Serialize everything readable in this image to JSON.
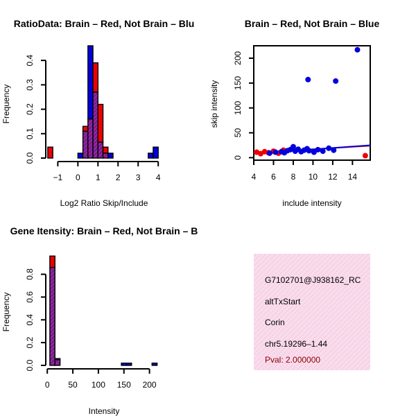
{
  "colors": {
    "red": "#ee0000",
    "blue": "#0000dd",
    "overlap": "#880088",
    "axis": "#000000",
    "pval": "#8b0000",
    "panel_bg": "#f7d6ea"
  },
  "chart_data": [
    {
      "type": "bar",
      "title": "RatioData: Brain – Red, Not Brain – Blu",
      "xlabel": "Log2 Ratio Skip/Include",
      "ylabel": "Frequency",
      "xlim": [
        -1.6,
        4.2
      ],
      "ylim": [
        0,
        0.46
      ],
      "xticks": [
        -1,
        0,
        1,
        2,
        3,
        4
      ],
      "yticks": [
        0.0,
        0.1,
        0.2,
        0.3,
        0.4
      ],
      "bin_width": 0.25,
      "series": [
        {
          "name": "Brain",
          "color": "red",
          "bars": [
            {
              "x": -1.5,
              "y": 0.045
            },
            {
              "x": 0.25,
              "y": 0.13
            },
            {
              "x": 0.5,
              "y": 0.16
            },
            {
              "x": 0.75,
              "y": 0.39
            },
            {
              "x": 1.0,
              "y": 0.22
            },
            {
              "x": 1.25,
              "y": 0.045
            }
          ]
        },
        {
          "name": "Not Brain",
          "color": "blue",
          "bars": [
            {
              "x": 0.0,
              "y": 0.02
            },
            {
              "x": 0.25,
              "y": 0.11
            },
            {
              "x": 0.5,
              "y": 0.46
            },
            {
              "x": 0.75,
              "y": 0.27
            },
            {
              "x": 1.0,
              "y": 0.065
            },
            {
              "x": 1.25,
              "y": 0.02
            },
            {
              "x": 1.5,
              "y": 0.02
            },
            {
              "x": 3.5,
              "y": 0.02
            },
            {
              "x": 3.75,
              "y": 0.045
            }
          ]
        }
      ]
    },
    {
      "type": "scatter",
      "title": "Brain – Red, Not Brain – Blue",
      "xlabel": "include intensity",
      "ylabel": "skip intensity",
      "xlim": [
        4,
        15.8
      ],
      "ylim": [
        -5,
        225
      ],
      "xticks": [
        4,
        6,
        8,
        10,
        12,
        14
      ],
      "yticks": [
        0,
        50,
        100,
        150,
        200
      ],
      "series": [
        {
          "name": "Brain",
          "color": "red",
          "x": [
            4.3,
            4.7,
            5.1,
            5.5,
            6.0,
            6.5,
            7.0,
            15.3
          ],
          "y": [
            11,
            8,
            12,
            10,
            13,
            9,
            15,
            4
          ],
          "fit": [
            [
              4,
              10
            ],
            [
              15.8,
              24
            ]
          ]
        },
        {
          "name": "Not Brain",
          "color": "blue",
          "x": [
            5.6,
            6.2,
            6.8,
            7.1,
            7.4,
            7.7,
            8.0,
            8.2,
            8.5,
            8.8,
            9.1,
            9.4,
            9.6,
            10.1,
            10.5,
            11.0,
            11.6,
            12.1,
            9.5,
            12.3,
            14.5
          ],
          "y": [
            9,
            11,
            12,
            10,
            14,
            16,
            22,
            13,
            17,
            12,
            15,
            18,
            14,
            11,
            16,
            13,
            19,
            15,
            157,
            154,
            217
          ],
          "fit": [
            [
              4,
              8
            ],
            [
              15.8,
              25
            ]
          ]
        }
      ]
    },
    {
      "type": "bar",
      "title": "Gene Itensity: Brain – Red, Not Brain – B",
      "xlabel": "Intensity",
      "ylabel": "Frequency",
      "xlim": [
        -3,
        225
      ],
      "ylim": [
        0,
        0.98
      ],
      "xticks": [
        0,
        50,
        100,
        150,
        200
      ],
      "yticks": [
        0.0,
        0.2,
        0.4,
        0.6,
        0.8
      ],
      "bin_width": 10,
      "series": [
        {
          "name": "Brain",
          "color": "red",
          "bars": [
            {
              "x": 5,
              "y": 0.96
            },
            {
              "x": 15,
              "y": 0.05
            }
          ]
        },
        {
          "name": "Not Brain",
          "color": "blue",
          "bars": [
            {
              "x": 5,
              "y": 0.86
            },
            {
              "x": 15,
              "y": 0.06
            },
            {
              "x": 145,
              "y": 0.02
            },
            {
              "x": 155,
              "y": 0.02
            },
            {
              "x": 205,
              "y": 0.02
            }
          ]
        }
      ]
    }
  ],
  "info_panel": {
    "gene_id": "G7102701@J938162_RC",
    "event_type": "altTxStart",
    "gene_name": "Corin",
    "location": "chr5.19296–1.44",
    "pval": "Pval: 2.000000"
  }
}
